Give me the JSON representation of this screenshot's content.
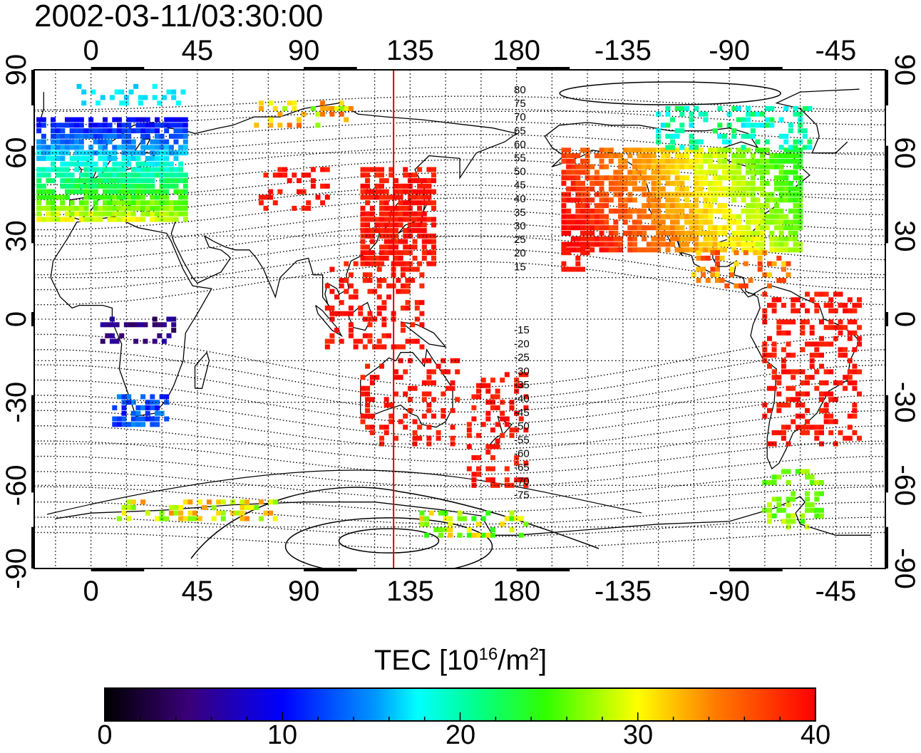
{
  "title": "2002-03-11/03:30:00",
  "map": {
    "lon_ticks_top": [
      "0",
      "45",
      "90",
      "135",
      "180",
      "-135",
      "-90",
      "-45"
    ],
    "lon_ticks_bottom": [
      "0",
      "45",
      "90",
      "135",
      "180",
      "-135",
      "-90",
      "-45"
    ],
    "lat_ticks_left": [
      "90",
      "60",
      "30",
      "0",
      "-30",
      "-60",
      "-90"
    ],
    "lat_ticks_right": [
      "90",
      "60",
      "30",
      "0",
      "-30",
      "-60",
      "-90"
    ],
    "contour_labels_north": [
      "80",
      "75",
      "70",
      "65",
      "60",
      "55",
      "50",
      "45",
      "40",
      "35",
      "30",
      "25",
      "20",
      "15"
    ],
    "contour_labels_south": [
      "-15",
      "-20",
      "-25",
      "-30",
      "-35",
      "-40",
      "-45",
      "-50",
      "-55",
      "-60",
      "-65",
      "-70",
      "-75"
    ],
    "subsolar_line_lon": 128,
    "line_color": "#e00000"
  },
  "colorbar": {
    "title_prefix": "TEC  [10",
    "title_exp": "16",
    "title_mid": "/m",
    "title_exp2": "2",
    "title_suffix": "]",
    "min": 0,
    "max": 40,
    "tick_labels": [
      "0",
      "10",
      "20",
      "30",
      "40"
    ]
  }
}
